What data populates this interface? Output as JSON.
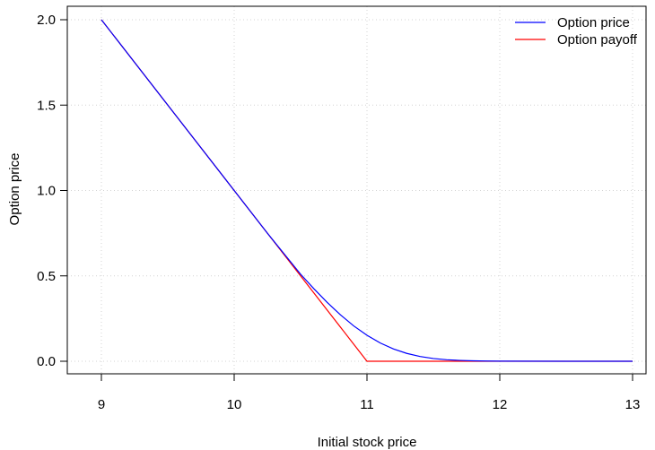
{
  "chart_data": {
    "type": "line",
    "title": "",
    "xlabel": "Initial stock price",
    "ylabel": "Option price",
    "xlim": [
      9,
      13
    ],
    "ylim": [
      0,
      2
    ],
    "xticks": [
      9,
      10,
      11,
      12,
      13
    ],
    "yticks": [
      0.0,
      0.5,
      1.0,
      1.5,
      2.0
    ],
    "xtick_labels": [
      "9",
      "10",
      "11",
      "12",
      "13"
    ],
    "ytick_labels": [
      "0.0",
      "0.5",
      "1.0",
      "1.5",
      "2.0"
    ],
    "grid": true,
    "legend_position": "top-right",
    "series": [
      {
        "name": "Option price",
        "color": "#0000ff",
        "x": [
          9.0,
          9.25,
          9.5,
          9.75,
          10.0,
          10.25,
          10.5,
          10.6,
          10.7,
          10.8,
          10.9,
          11.0,
          11.1,
          11.2,
          11.3,
          11.4,
          11.5,
          11.6,
          11.7,
          11.8,
          11.9,
          12.0,
          12.5,
          13.0
        ],
        "y": [
          2.0,
          1.75,
          1.5,
          1.25,
          1.0,
          0.75,
          0.51,
          0.425,
          0.345,
          0.272,
          0.207,
          0.152,
          0.107,
          0.072,
          0.046,
          0.028,
          0.016,
          0.009,
          0.005,
          0.0025,
          0.0012,
          0.0005,
          0.0,
          0.0
        ]
      },
      {
        "name": "Option payoff",
        "color": "#ff0000",
        "x": [
          9.0,
          11.0,
          13.0
        ],
        "y": [
          2.0,
          0.0,
          0.0
        ]
      }
    ]
  }
}
